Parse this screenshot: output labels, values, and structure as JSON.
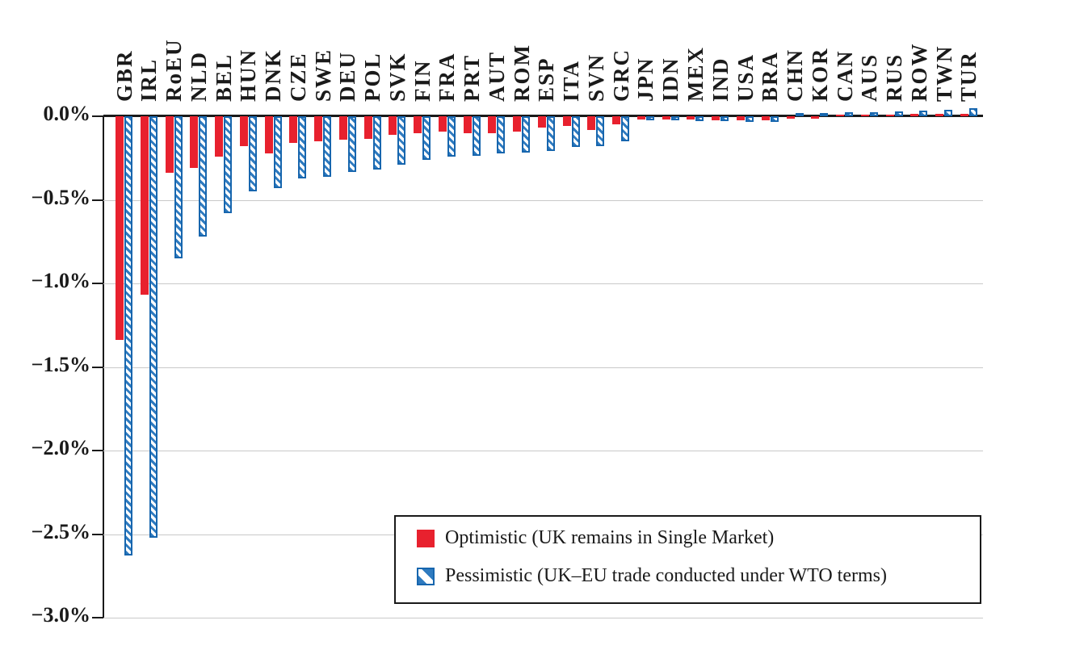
{
  "page": {
    "background": "#ffffff"
  },
  "colors": {
    "optimistic_red": "#e8212e",
    "pessimistic_blue_border": "#1766ae",
    "pessimistic_blue_hatch": "#2f7bc0",
    "gridline_gray": "#c9c9c9",
    "axis_black": "#1a1a1a"
  },
  "legend": {
    "optimistic_label": "Optimistic (UK remains in Single Market)",
    "pessimistic_label": "Pessimistic (UK–EU trade conducted under WTO terms)"
  },
  "chart_data": {
    "type": "bar",
    "orientation": "vertical",
    "unit": "%",
    "grid": "horizontal",
    "legend_position": "inside-bottom-right",
    "ylim": [
      -3.0,
      0.1
    ],
    "yticks": [
      {
        "value": 0.0,
        "label": "0.0%"
      },
      {
        "value": -0.5,
        "label": "−0.5%"
      },
      {
        "value": -1.0,
        "label": "−1.0%"
      },
      {
        "value": -1.5,
        "label": "−1.5%"
      },
      {
        "value": -2.0,
        "label": "−2.0%"
      },
      {
        "value": -2.5,
        "label": "−2.5%"
      },
      {
        "value": -3.0,
        "label": "−3.0%"
      }
    ],
    "categories": [
      "GBR",
      "IRL",
      "RoEU",
      "NLD",
      "BEL",
      "HUN",
      "DNK",
      "CZE",
      "SWE",
      "DEU",
      "POL",
      "SVK",
      "FIN",
      "FRA",
      "PRT",
      "AUT",
      "ROM",
      "ESP",
      "ITA",
      "SVN",
      "GRC",
      "JPN",
      "IDN",
      "MEX",
      "IND",
      "USA",
      "BRA",
      "CHN",
      "KOR",
      "CAN",
      "AUS",
      "RUS",
      "ROW",
      "TWN",
      "TUR"
    ],
    "series": [
      {
        "name": "Optimistic (UK remains in Single Market)",
        "style": "solid",
        "color": "#e8212e",
        "values": [
          -1.34,
          -1.07,
          -0.34,
          -0.31,
          -0.24,
          -0.18,
          -0.22,
          -0.16,
          -0.15,
          -0.14,
          -0.135,
          -0.11,
          -0.1,
          -0.09,
          -0.1,
          -0.1,
          -0.09,
          -0.07,
          -0.06,
          -0.08,
          -0.05,
          -0.02,
          -0.021,
          -0.02,
          -0.022,
          -0.022,
          -0.023,
          -0.015,
          -0.012,
          0.01,
          0.012,
          0.012,
          0.015,
          0.013,
          0.016
        ]
      },
      {
        "name": "Pessimistic (UK–EU trade conducted under WTO terms)",
        "style": "hatched",
        "color": "#1766ae",
        "hatch_fill": "#2f7bc0",
        "values": [
          -2.63,
          -2.52,
          -0.85,
          -0.72,
          -0.58,
          -0.45,
          -0.43,
          -0.37,
          -0.36,
          -0.335,
          -0.32,
          -0.29,
          -0.26,
          -0.24,
          -0.235,
          -0.22,
          -0.215,
          -0.21,
          -0.185,
          -0.18,
          -0.15,
          -0.022,
          -0.026,
          -0.027,
          -0.03,
          -0.032,
          -0.034,
          0.008,
          0.018,
          0.022,
          0.025,
          0.03,
          0.032,
          0.04,
          0.05
        ]
      }
    ]
  }
}
